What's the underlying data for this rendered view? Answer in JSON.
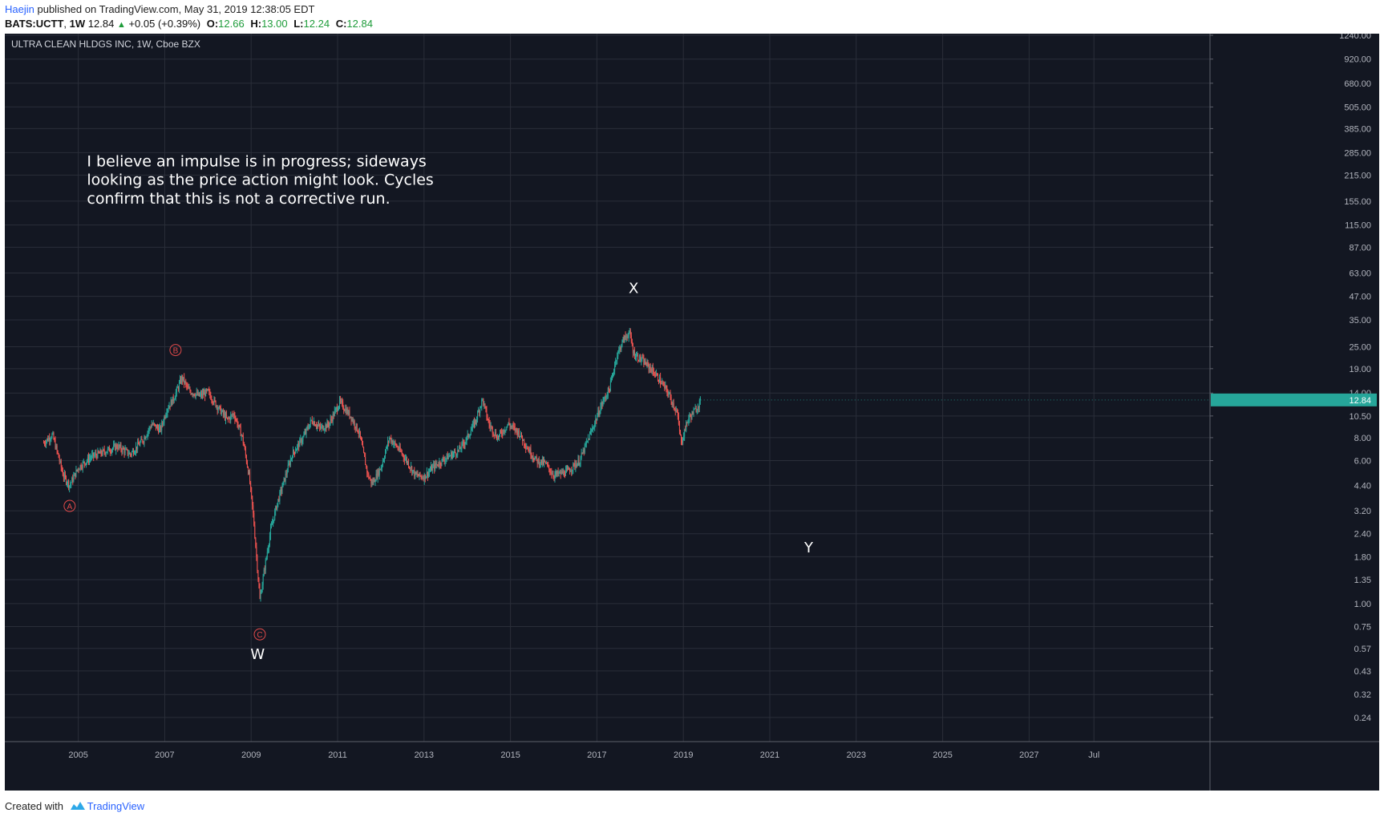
{
  "header": {
    "author": "Haejin",
    "published_text": "published on TradingView.com, May 31, 2019 12:38:05 EDT",
    "symbol": "BATS:UCTT",
    "interval": "1W",
    "last": "12.84",
    "change": "+0.05 (+0.39%)",
    "o_label": "O:",
    "o": "12.66",
    "h_label": "H:",
    "h": "13.00",
    "l_label": "L:",
    "l": "12.24",
    "c_label": "C:",
    "c": "12.84"
  },
  "chart_data": {
    "type": "candlestick",
    "title": "ULTRA CLEAN HLDGS INC, 1W, Cboe BZX",
    "y_scale": "log",
    "ylim": [
      0.2,
      1240
    ],
    "xlim": [
      2003.3,
      2031.0
    ],
    "y_ticks": [
      "1240.00",
      "920.00",
      "680.00",
      "505.00",
      "385.00",
      "285.00",
      "215.00",
      "155.00",
      "115.00",
      "87.00",
      "63.00",
      "47.00",
      "35.00",
      "25.00",
      "19.00",
      "14.00",
      "10.50",
      "8.00",
      "6.00",
      "4.40",
      "3.20",
      "2.40",
      "1.80",
      "1.35",
      "1.00",
      "0.75",
      "0.57",
      "0.43",
      "0.32",
      "0.24"
    ],
    "x_ticks": [
      {
        "label": "2005",
        "x": 2005.0
      },
      {
        "label": "2007",
        "x": 2007.0
      },
      {
        "label": "2009",
        "x": 2009.0
      },
      {
        "label": "2011",
        "x": 2011.0
      },
      {
        "label": "2013",
        "x": 2013.0
      },
      {
        "label": "2015",
        "x": 2015.0
      },
      {
        "label": "2017",
        "x": 2017.0
      },
      {
        "label": "2019",
        "x": 2019.0
      },
      {
        "label": "2021",
        "x": 2021.0
      },
      {
        "label": "2023",
        "x": 2023.0
      },
      {
        "label": "2025",
        "x": 2025.0
      },
      {
        "label": "2027",
        "x": 2027.0
      },
      {
        "label": "Jul",
        "x": 2028.5
      }
    ],
    "price_path": [
      [
        2004.2,
        7.5
      ],
      [
        2004.4,
        8.3
      ],
      [
        2004.55,
        6.2
      ],
      [
        2004.65,
        5.0
      ],
      [
        2004.8,
        4.4
      ],
      [
        2005.0,
        5.5
      ],
      [
        2005.3,
        6.3
      ],
      [
        2005.6,
        6.7
      ],
      [
        2005.9,
        7.2
      ],
      [
        2006.2,
        6.5
      ],
      [
        2006.5,
        7.8
      ],
      [
        2006.7,
        9.5
      ],
      [
        2006.9,
        8.8
      ],
      [
        2007.05,
        11.5
      ],
      [
        2007.2,
        13.0
      ],
      [
        2007.4,
        17.0
      ],
      [
        2007.55,
        14.5
      ],
      [
        2007.8,
        13.5
      ],
      [
        2008.0,
        14.2
      ],
      [
        2008.2,
        12.0
      ],
      [
        2008.45,
        10.0
      ],
      [
        2008.6,
        10.8
      ],
      [
        2008.8,
        8.0
      ],
      [
        2008.95,
        5.0
      ],
      [
        2009.05,
        3.0
      ],
      [
        2009.15,
        1.5
      ],
      [
        2009.2,
        1.05
      ],
      [
        2009.3,
        1.5
      ],
      [
        2009.45,
        2.5
      ],
      [
        2009.6,
        3.5
      ],
      [
        2009.8,
        5.0
      ],
      [
        2009.95,
        6.5
      ],
      [
        2010.2,
        8.0
      ],
      [
        2010.4,
        10.0
      ],
      [
        2010.6,
        9.0
      ],
      [
        2010.8,
        9.5
      ],
      [
        2011.05,
        12.5
      ],
      [
        2011.3,
        10.5
      ],
      [
        2011.5,
        8.5
      ],
      [
        2011.7,
        5.0
      ],
      [
        2011.8,
        4.5
      ],
      [
        2012.0,
        5.5
      ],
      [
        2012.2,
        8.0
      ],
      [
        2012.4,
        7.0
      ],
      [
        2012.6,
        6.0
      ],
      [
        2012.8,
        5.0
      ],
      [
        2013.0,
        4.9
      ],
      [
        2013.2,
        5.5
      ],
      [
        2013.5,
        6.2
      ],
      [
        2013.8,
        6.8
      ],
      [
        2014.0,
        8.0
      ],
      [
        2014.2,
        10.0
      ],
      [
        2014.35,
        13.0
      ],
      [
        2014.5,
        9.5
      ],
      [
        2014.7,
        8.0
      ],
      [
        2014.95,
        9.5
      ],
      [
        2015.2,
        8.5
      ],
      [
        2015.4,
        7.0
      ],
      [
        2015.6,
        6.0
      ],
      [
        2015.8,
        5.8
      ],
      [
        2016.0,
        5.0
      ],
      [
        2016.3,
        5.2
      ],
      [
        2016.6,
        6.0
      ],
      [
        2016.9,
        9.0
      ],
      [
        2017.1,
        12.0
      ],
      [
        2017.3,
        15.0
      ],
      [
        2017.45,
        22.0
      ],
      [
        2017.6,
        27.0
      ],
      [
        2017.75,
        30.0
      ],
      [
        2017.85,
        23.0
      ],
      [
        2018.05,
        21.0
      ],
      [
        2018.25,
        19.0
      ],
      [
        2018.45,
        16.5
      ],
      [
        2018.65,
        14.0
      ],
      [
        2018.85,
        11.0
      ],
      [
        2018.95,
        7.5
      ],
      [
        2019.1,
        10.0
      ],
      [
        2019.3,
        11.5
      ],
      [
        2019.4,
        12.84
      ]
    ],
    "annotations": [
      {
        "text": "I believe an impulse is in progress; sideways",
        "x": 2005.2,
        "y": 240
      },
      {
        "text": "looking as the price action might look. Cycles",
        "x": 2005.2,
        "y": 190
      },
      {
        "text": "confirm that this is not a corrective run.",
        "x": 2005.2,
        "y": 150
      }
    ],
    "wave_labels": [
      {
        "text": "X",
        "x": 2017.85,
        "y": 49
      },
      {
        "text": "W",
        "x": 2009.15,
        "y": 0.5
      },
      {
        "text": "Y",
        "x": 2021.9,
        "y": 1.9
      }
    ],
    "circled_labels": [
      {
        "text": "A",
        "x": 2004.8,
        "y": 3.4
      },
      {
        "text": "B",
        "x": 2007.25,
        "y": 24
      },
      {
        "text": "C",
        "x": 2009.2,
        "y": 0.68
      }
    ],
    "last_price_label": "12.84",
    "colors": {
      "background": "#131722",
      "grid": "#2a2e39",
      "up": "#26a69a",
      "down": "#ef5350",
      "text": "#b2b5be",
      "price_tag": "#26a69a",
      "circle_label": "#e04a4a"
    }
  },
  "footer": {
    "created_with": "Created with",
    "brand": "TradingView"
  }
}
